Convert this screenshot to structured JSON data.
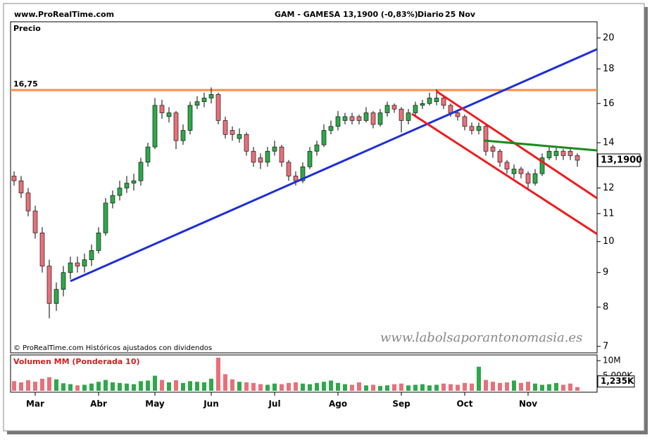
{
  "chart_data": {
    "type": "candlestick",
    "site": "www.ProRealTime.com",
    "title": "GAM - GAMESA",
    "quote": "13,1900 (-0,83%)",
    "period": "Diario",
    "date": "25 Nov",
    "panel_label": "Precio",
    "copyright": "© ProRealTime.com Históricos ajustados con dividendos",
    "watermark": "www.labolsaporantonomasia.es",
    "log_scale": true,
    "up_color": "#2ea84a",
    "down_color": "#e8707a",
    "categories": [
      null,
      null,
      null,
      "Mar",
      null,
      null,
      null,
      null,
      null,
      null,
      null,
      null,
      "Abr",
      null,
      null,
      null,
      null,
      null,
      null,
      null,
      "May",
      null,
      null,
      null,
      null,
      null,
      null,
      null,
      "Jun",
      null,
      null,
      null,
      null,
      null,
      null,
      null,
      null,
      "Jul",
      null,
      null,
      null,
      null,
      null,
      null,
      null,
      null,
      "Ago",
      null,
      null,
      null,
      null,
      null,
      null,
      null,
      null,
      "Sep",
      null,
      null,
      null,
      null,
      null,
      null,
      null,
      null,
      "Oct",
      null,
      null,
      null,
      null,
      null,
      null,
      null,
      null,
      "Nov",
      null,
      null,
      null,
      null,
      null,
      null,
      null
    ],
    "open": [
      12.5,
      12.3,
      11.8,
      11.1,
      10.3,
      9.2,
      8.1,
      8.5,
      9.0,
      9.3,
      9.2,
      9.4,
      9.7,
      10.3,
      11.4,
      11.7,
      12.0,
      12.2,
      12.3,
      13.1,
      13.8,
      15.9,
      15.3,
      15.5,
      14.1,
      14.6,
      15.9,
      16.1,
      16.3,
      16.5,
      15.1,
      14.6,
      14.2,
      14.4,
      13.6,
      13.3,
      13.1,
      13.6,
      13.8,
      13.1,
      12.5,
      12.3,
      12.9,
      13.6,
      13.9,
      14.6,
      14.8,
      15.1,
      15.3,
      15.3,
      15.1,
      15.5,
      14.9,
      15.5,
      15.9,
      15.7,
      15.1,
      15.5,
      15.9,
      16.0,
      16.1,
      16.3,
      15.9,
      15.5,
      15.3,
      14.8,
      14.6,
      14.8,
      13.8,
      13.6,
      13.1,
      12.6,
      12.8,
      12.6,
      12.2,
      12.6,
      13.3,
      13.4,
      13.6,
      13.6,
      13.4
    ],
    "high": [
      12.7,
      12.5,
      12.0,
      11.3,
      10.5,
      9.4,
      8.7,
      9.2,
      9.5,
      9.5,
      9.6,
      9.9,
      10.5,
      11.6,
      11.9,
      12.3,
      12.5,
      12.6,
      13.3,
      14.0,
      16.3,
      16.2,
      15.8,
      15.6,
      14.9,
      16.1,
      16.4,
      16.6,
      16.9,
      16.6,
      15.3,
      14.8,
      14.7,
      14.5,
      13.8,
      13.5,
      13.8,
      14.1,
      13.9,
      13.2,
      12.7,
      13.1,
      13.8,
      14.1,
      14.9,
      15.1,
      15.6,
      15.5,
      15.5,
      15.4,
      15.8,
      15.6,
      15.7,
      16.1,
      16.0,
      15.8,
      15.7,
      16.1,
      16.2,
      16.6,
      16.8,
      16.4,
      16.0,
      15.6,
      15.4,
      15.0,
      15.0,
      14.9,
      13.9,
      13.7,
      13.2,
      13.0,
      12.9,
      12.7,
      12.8,
      13.5,
      13.8,
      13.8,
      13.7,
      13.7,
      13.5
    ],
    "low": [
      12.1,
      11.6,
      10.9,
      10.1,
      9.0,
      7.7,
      7.9,
      8.3,
      8.8,
      9.0,
      9.0,
      9.2,
      9.6,
      10.2,
      11.2,
      11.5,
      11.8,
      11.9,
      12.1,
      12.9,
      13.7,
      15.2,
      15.0,
      13.7,
      13.9,
      14.4,
      15.7,
      15.8,
      16.0,
      14.9,
      14.2,
      14.1,
      14.0,
      13.4,
      12.9,
      12.8,
      12.9,
      13.4,
      12.9,
      12.3,
      12.1,
      12.2,
      12.8,
      13.4,
      13.8,
      14.4,
      14.6,
      14.9,
      14.9,
      14.9,
      15.0,
      14.7,
      14.8,
      15.3,
      15.5,
      14.5,
      14.9,
      15.3,
      15.7,
      15.9,
      15.9,
      15.7,
      15.3,
      15.1,
      14.6,
      14.4,
      14.4,
      13.4,
      13.3,
      12.9,
      12.6,
      12.4,
      12.4,
      11.9,
      12.1,
      12.5,
      13.2,
      13.2,
      13.2,
      13.2,
      12.9
    ],
    "close": [
      12.3,
      11.8,
      11.1,
      10.3,
      9.2,
      8.1,
      8.5,
      9.0,
      9.3,
      9.2,
      9.4,
      9.7,
      10.3,
      11.4,
      11.7,
      12.0,
      12.2,
      12.3,
      13.1,
      13.8,
      15.9,
      15.5,
      15.5,
      14.1,
      14.6,
      15.9,
      16.1,
      16.3,
      16.5,
      15.1,
      14.4,
      14.4,
      14.4,
      13.6,
      13.1,
      13.1,
      13.6,
      13.8,
      13.1,
      12.5,
      12.3,
      12.9,
      13.6,
      13.9,
      14.6,
      14.8,
      15.3,
      15.3,
      15.1,
      15.1,
      15.5,
      14.9,
      15.5,
      15.9,
      15.7,
      15.1,
      15.5,
      15.9,
      16.0,
      16.3,
      16.3,
      15.9,
      15.5,
      15.3,
      14.8,
      14.6,
      14.8,
      13.6,
      13.6,
      13.1,
      12.8,
      12.8,
      12.6,
      12.2,
      12.6,
      13.3,
      13.6,
      13.6,
      13.4,
      13.4,
      13.19
    ],
    "ylim": [
      6.88,
      21.03
    ],
    "yticks": [
      7,
      8,
      9,
      10,
      11,
      12,
      14,
      16,
      18,
      20
    ],
    "hline": {
      "value": 16.75,
      "label": "16,75",
      "color": "#ff8c42"
    },
    "last_label": {
      "value": 13.19,
      "label": "13,1900"
    },
    "volume": {
      "label": "Volumen MM (Ponderada 10)",
      "values": [
        3200000,
        2800000,
        3500000,
        3000000,
        4000000,
        4500000,
        3800000,
        2500000,
        2200000,
        1800000,
        2000000,
        2400000,
        3000000,
        3600000,
        2800000,
        2600000,
        2400000,
        2200000,
        3200000,
        3400000,
        5000000,
        3600000,
        2800000,
        3500000,
        2600000,
        3200000,
        3000000,
        2800000,
        4000000,
        11000000,
        5500000,
        3800000,
        3000000,
        2800000,
        2600000,
        2200000,
        2000000,
        2400000,
        2200000,
        2600000,
        2800000,
        2400000,
        2200000,
        2600000,
        3000000,
        3400000,
        2600000,
        2200000,
        2000000,
        2800000,
        1800000,
        2000000,
        1600000,
        1800000,
        2200000,
        2400000,
        1800000,
        2000000,
        2200000,
        1800000,
        2000000,
        2400000,
        2200000,
        2000000,
        2600000,
        2400000,
        8000000,
        3600000,
        3000000,
        2600000,
        2800000,
        3400000,
        2600000,
        3000000,
        2400000,
        2000000,
        2200000,
        2600000,
        2000000,
        2400000,
        1235000
      ],
      "ylim": [
        0,
        11900000
      ],
      "yticks": [
        {
          "value": 5000000,
          "label": "5,000K"
        },
        {
          "value": 10000000,
          "label": "10M"
        }
      ],
      "last_label": {
        "value": 1235000,
        "label": "1,235K"
      }
    }
  }
}
